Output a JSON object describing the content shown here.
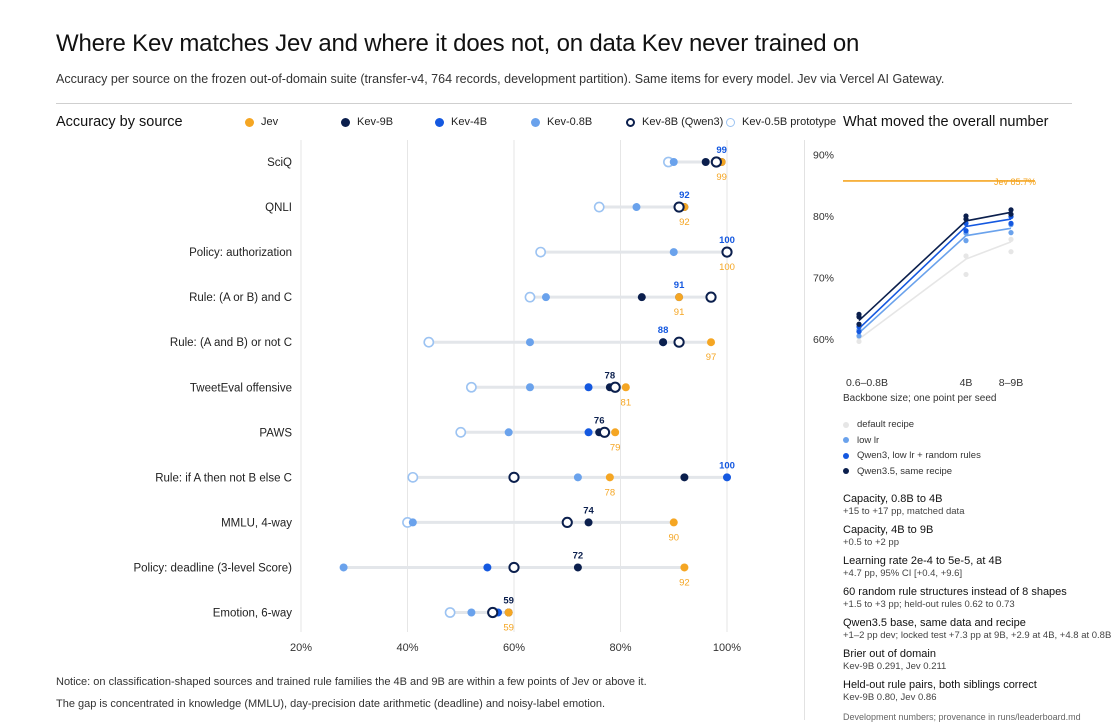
{
  "title": "Where Kev matches Jev and where it does not, on data Kev never trained on",
  "subtitle": "Accuracy per source on the frozen out-of-domain suite (transfer-v4, 764 records, development partition). Same items for every model. Jev via Vercel AI Gateway.",
  "left_section_title": "Accuracy by source",
  "right_section_title": "What moved the overall number",
  "notice": [
    "Notice: on classification-shaped sources and trained rule families the 4B and 9B are within a few points of Jev or above it.",
    "The gap is concentrated in knowledge (MMLU), day-precision date arithmetic (deadline) and noisy-label emotion."
  ],
  "colors": {
    "jev": "#f5a623",
    "kev9b": "#0b1f4d",
    "kev4b": "#1458e0",
    "kev08b": "#6aa2ec",
    "kev8b_qwen3": "#0b1f4d",
    "kev05b": "#9cc3f2",
    "line": "#e3e6ea"
  },
  "chart_data": [
    {
      "type": "scatter",
      "subtype": "dot-plot",
      "title": "Accuracy by source",
      "xlim": [
        20,
        100
      ],
      "x_ticks": [
        "20%",
        "40%",
        "60%",
        "80%",
        "100%"
      ],
      "x_tick_values": [
        20,
        40,
        60,
        80,
        100
      ],
      "grid": true,
      "legend_position": "top",
      "legend": [
        {
          "key": "jev",
          "label": "Jev",
          "style": "filled",
          "color": "#f5a623"
        },
        {
          "key": "kev9b",
          "label": "Kev-9B",
          "style": "filled",
          "color": "#0b1f4d"
        },
        {
          "key": "kev4b",
          "label": "Kev-4B",
          "style": "filled",
          "color": "#1458e0"
        },
        {
          "key": "kev08b",
          "label": "Kev-0.8B",
          "style": "filled",
          "color": "#6aa2ec"
        },
        {
          "key": "kev8b",
          "label": "Kev-8B (Qwen3)",
          "style": "hollow",
          "color": "#0b1f4d"
        },
        {
          "key": "kev05b",
          "label": "Kev-0.5B prototype",
          "style": "hollow",
          "color": "#9cc3f2"
        }
      ],
      "categories": [
        "SciQ",
        "QNLI",
        "Policy: authorization",
        "Rule: (A or B) and C",
        "Rule: (A and B) or not C",
        "TweetEval offensive",
        "PAWS",
        "Rule: if A then not B else C",
        "MMLU, 4-way",
        "Policy: deadline (3-level Score)",
        "Emotion, 6-way"
      ],
      "series": [
        {
          "name": "Jev",
          "key": "jev",
          "values": [
            99,
            92,
            100,
            91,
            97,
            81,
            79,
            78,
            90,
            92,
            59
          ]
        },
        {
          "name": "Kev-9B",
          "key": "kev9b",
          "values": [
            96,
            91,
            100,
            84,
            88,
            78,
            76,
            92,
            74,
            72,
            59
          ]
        },
        {
          "name": "Kev-4B",
          "key": "kev4b",
          "values": [
            99,
            92,
            100,
            91,
            88,
            74,
            74,
            100,
            70,
            55,
            57
          ]
        },
        {
          "name": "Kev-0.8B",
          "key": "kev08b",
          "values": [
            90,
            83,
            90,
            66,
            63,
            63,
            59,
            72,
            41,
            28,
            52
          ]
        },
        {
          "name": "Kev-8B (Qwen3)",
          "key": "kev8b",
          "values": [
            98,
            91,
            100,
            97,
            91,
            79,
            77,
            60,
            70,
            60,
            56
          ]
        },
        {
          "name": "Kev-0.5B prototype",
          "key": "kev05b",
          "values": [
            89,
            76,
            65,
            63,
            44,
            52,
            50,
            41,
            40,
            null,
            48
          ]
        }
      ],
      "annotations": [
        {
          "category": "SciQ",
          "top": "99",
          "bottom": "99"
        },
        {
          "category": "QNLI",
          "top": "92",
          "bottom": "92"
        },
        {
          "category": "Policy: authorization",
          "top": "100",
          "bottom": "100"
        },
        {
          "category": "Rule: (A or B) and C",
          "top": "91",
          "bottom": "91"
        },
        {
          "category": "Rule: (A and B) or not C",
          "top": "88",
          "bottom": "97"
        },
        {
          "category": "TweetEval offensive",
          "top": "78",
          "bottom": "81"
        },
        {
          "category": "PAWS",
          "top": "76",
          "bottom": "79"
        },
        {
          "category": "Rule: if A then not B else C",
          "top": "100",
          "bottom": "78"
        },
        {
          "category": "MMLU, 4-way",
          "top": "74",
          "bottom": "90"
        },
        {
          "category": "Policy: deadline (3-level Score)",
          "top": "72",
          "bottom": "92"
        },
        {
          "category": "Emotion, 6-way",
          "top": "59",
          "bottom": "59"
        }
      ]
    },
    {
      "type": "line",
      "title": "What moved the overall number",
      "xlabel": "Backbone size; one point per seed",
      "categories": [
        "0.6–0.8B",
        "4B",
        "8–9B"
      ],
      "y_ticks": [
        "60%",
        "70%",
        "80%",
        "90%"
      ],
      "y_tick_values": [
        60,
        70,
        80,
        90
      ],
      "ylim": [
        58,
        92
      ],
      "reference_line": {
        "label": "Jev 85.7%",
        "value": 85.7
      },
      "series": [
        {
          "name": "default recipe",
          "color": "#e6e6e6",
          "line": [
            [
              0,
              60.0
            ],
            [
              1,
              73.0
            ],
            [
              2,
              75.8
            ]
          ],
          "points": [
            [
              0,
              59.6
            ],
            [
              0,
              60.3
            ],
            [
              1,
              70.5
            ],
            [
              1,
              73.5
            ],
            [
              2,
              74.2
            ],
            [
              2,
              76.2
            ]
          ]
        },
        {
          "name": "low lr",
          "color": "#6aa2ec",
          "line": [
            [
              0,
              61.0
            ],
            [
              1,
              76.8
            ],
            [
              2,
              78.0
            ]
          ],
          "points": [
            [
              0,
              60.5
            ],
            [
              0,
              61.5
            ],
            [
              1,
              76.0
            ],
            [
              1,
              77.2
            ],
            [
              2,
              77.3
            ],
            [
              2,
              78.6
            ]
          ]
        },
        {
          "name": "Qwen3, low lr + random rules",
          "color": "#1458e0",
          "line": [
            [
              0,
              61.7
            ],
            [
              1,
              78.3
            ],
            [
              2,
              79.5
            ]
          ],
          "points": [
            [
              0,
              61.2
            ],
            [
              0,
              62.0
            ],
            [
              1,
              77.6
            ],
            [
              1,
              78.8
            ],
            [
              2,
              78.8
            ],
            [
              2,
              79.9
            ]
          ]
        },
        {
          "name": "Qwen3.5, same recipe",
          "color": "#0b1f4d",
          "line": [
            [
              0,
              63.0
            ],
            [
              1,
              79.2
            ],
            [
              2,
              80.6
            ]
          ],
          "points": [
            [
              0,
              62.4
            ],
            [
              0,
              63.6
            ],
            [
              0,
              64.0
            ],
            [
              1,
              79.5
            ],
            [
              1,
              80.0
            ],
            [
              2,
              80.3
            ],
            [
              2,
              81.0
            ]
          ]
        }
      ]
    }
  ],
  "moved_items": [
    {
      "label": "Capacity, 0.8B to 4B",
      "detail": "+15 to +17 pp, matched data"
    },
    {
      "label": "Capacity, 4B to 9B",
      "detail": "+0.5 to +2 pp"
    },
    {
      "label": "Learning rate 2e-4 to 5e-5, at 4B",
      "detail": "+4.7 pp, 95% CI [+0.4, +9.6]"
    },
    {
      "label": "60 random rule structures instead of 8 shapes",
      "detail": "+1.5 to +3 pp; held-out rules 0.62 to 0.73"
    },
    {
      "label": "Qwen3.5 base, same data and recipe",
      "detail": "+1–2 pp dev; locked test +7.3 pp at 9B, +2.9 at 4B, +4.8 at 0.8B"
    },
    {
      "label": "Brier out of domain",
      "detail": "Kev-9B 0.291, Jev 0.211"
    },
    {
      "label": "Held-out rule pairs, both siblings correct",
      "detail": "Kev-9B 0.80, Jev 0.86"
    }
  ],
  "footnote": "Development numbers; provenance in runs/leaderboard.md"
}
